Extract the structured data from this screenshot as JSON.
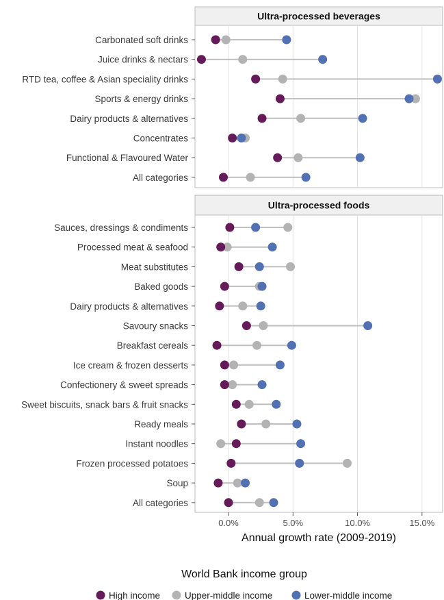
{
  "chart_data": {
    "type": "dot-range",
    "xlabel": "Annual growth rate (2009-2019)",
    "x_ticks": [
      "0.0%",
      "5.0%",
      "10.0%",
      "15.0%"
    ],
    "x_tick_values": [
      0,
      5,
      10,
      15
    ],
    "xlim": [
      -2.6,
      16.6
    ],
    "grid": true,
    "legend": {
      "title": "World Bank income group",
      "placement": "bottom",
      "entries": [
        {
          "label": "High income",
          "color": "#651a5a"
        },
        {
          "label": "Upper-middle income",
          "color": "#b3b3b3"
        },
        {
          "label": "Lower-middle income",
          "color": "#5171b3"
        }
      ]
    },
    "panels": [
      {
        "title": "Ultra-processed beverages",
        "categories": [
          "Carbonated soft drinks",
          "Juice drinks & nectars",
          "RTD tea, coffee & Asian speciality drinks",
          "Sports & energy drinks",
          "Dairy products & alternatives",
          "Concentrates",
          "Functional & Flavoured Water",
          "All categories"
        ],
        "high": [
          -1.0,
          -2.1,
          2.1,
          4.0,
          2.6,
          0.3,
          3.8,
          -0.4
        ],
        "upper_middle": [
          -0.2,
          1.1,
          4.2,
          14.5,
          5.6,
          1.3,
          5.4,
          1.7
        ],
        "lower_middle": [
          4.5,
          7.3,
          16.2,
          14.0,
          10.4,
          1.0,
          10.2,
          6.0
        ]
      },
      {
        "title": "Ultra-processed foods",
        "categories": [
          "Sauces, dressings & condiments",
          "Processed meat & seafood",
          "Meat substitutes",
          "Baked goods",
          "Dairy products & alternatives",
          "Savoury snacks",
          "Breakfast cereals",
          "Ice cream & frozen desserts",
          "Confectionery & sweet spreads",
          "Sweet biscuits, snack bars & fruit snacks",
          "Ready meals",
          "Instant noodles",
          "Frozen processed potatoes",
          "Soup",
          "All categories"
        ],
        "high": [
          0.1,
          -0.6,
          0.8,
          -0.3,
          -0.7,
          1.4,
          -0.9,
          -0.3,
          -0.3,
          0.6,
          1.0,
          0.6,
          0.2,
          -0.8,
          0.0
        ],
        "upper_middle": [
          4.6,
          -0.1,
          4.8,
          2.4,
          1.1,
          2.7,
          2.2,
          0.4,
          0.3,
          1.6,
          2.9,
          -0.6,
          9.2,
          0.7,
          2.4
        ],
        "lower_middle": [
          2.1,
          3.4,
          2.4,
          2.6,
          2.5,
          10.8,
          4.9,
          4.0,
          2.6,
          3.7,
          5.3,
          5.6,
          5.5,
          1.3,
          3.5
        ]
      }
    ]
  }
}
